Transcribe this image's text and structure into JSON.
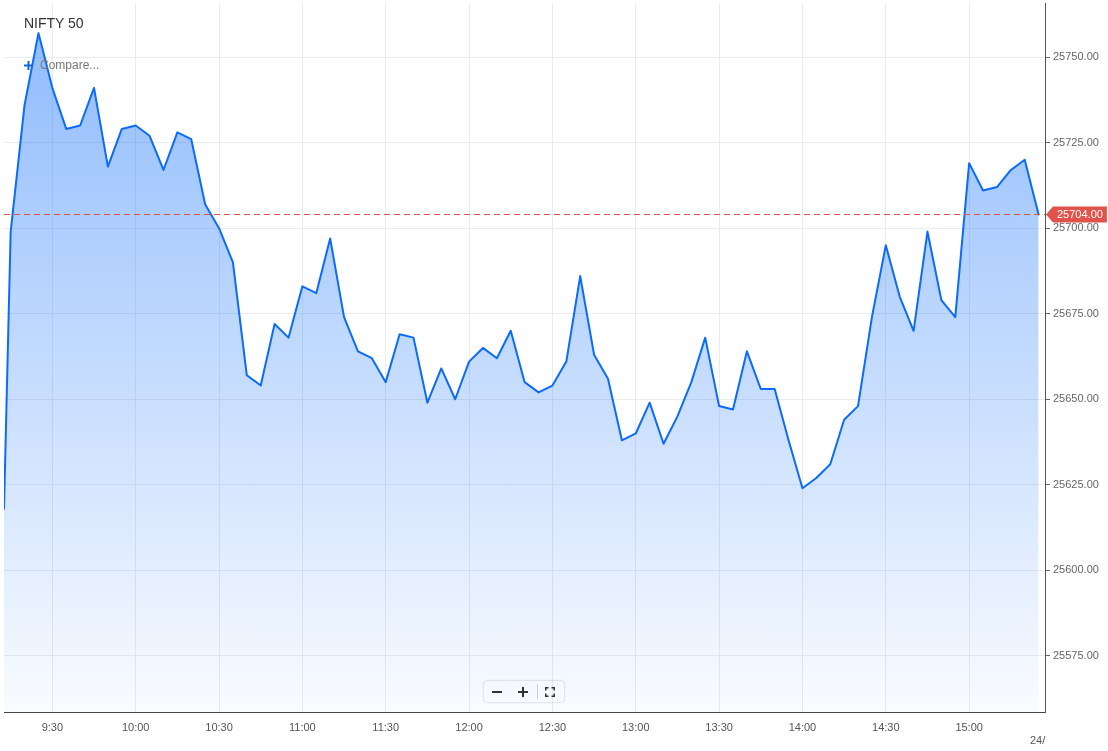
{
  "chart_data": {
    "type": "area",
    "title": "NIFTY 50",
    "annotations": [
      "Compare...",
      "24/"
    ],
    "series": [
      {
        "color": "#0b6bfa",
        "x": [
          9.21,
          9.25,
          9.3333,
          9.4167,
          9.5,
          9.5833,
          9.6667,
          9.75,
          9.8333,
          9.9167,
          10,
          10.0833,
          10.1667,
          10.25,
          10.3333,
          10.4167,
          10.5,
          10.5833,
          10.6667,
          10.75,
          10.8333,
          10.9167,
          11,
          11.0833,
          11.1667,
          11.25,
          11.3333,
          11.4167,
          11.5,
          11.5833,
          11.6667,
          11.75,
          11.8333,
          11.9167,
          12,
          12.0833,
          12.1667,
          12.25,
          12.3333,
          12.4167,
          12.5,
          12.5833,
          12.6667,
          12.75,
          12.8333,
          12.9167,
          13,
          13.0833,
          13.1667,
          13.25,
          13.3333,
          13.4167,
          13.5,
          13.5833,
          13.6667,
          13.75,
          13.8333,
          13.9167,
          14,
          14.0833,
          14.1667,
          14.25,
          14.3333,
          14.4167,
          14.5,
          14.5833,
          14.6667,
          14.75,
          14.8333,
          14.9167,
          15,
          15.0833,
          15.1667,
          15.25,
          15.3333,
          15.4167
        ],
        "values": [
          25618,
          25699,
          25736,
          25757,
          25741,
          25729,
          25730,
          25741,
          25718,
          25729,
          25730,
          25727,
          25717,
          25728,
          25726,
          25707,
          25700,
          25690,
          25657,
          25654,
          25672,
          25668,
          25683,
          25681,
          25697,
          25674,
          25664,
          25662,
          25655,
          25669,
          25668,
          25649,
          25659,
          25650,
          25661,
          25665,
          25662,
          25670,
          25655,
          25652,
          25654,
          25661,
          25686,
          25663,
          25656,
          25638,
          25640,
          25649,
          25637,
          25645,
          25655,
          25668,
          25648,
          25647,
          25664,
          25653,
          25653,
          25638,
          25624,
          25627,
          25631,
          25644,
          25648,
          25674,
          25695,
          25680,
          25670,
          25699,
          25679,
          25674,
          25719,
          25711,
          25712,
          25717,
          25720,
          25704
        ]
      }
    ],
    "xlim": [
      9.21,
      15.455
    ],
    "xticks": [
      {
        "value": 9.5,
        "label": "9:30"
      },
      {
        "value": 10,
        "label": "10:00"
      },
      {
        "value": 10.5,
        "label": "10:30"
      },
      {
        "value": 11,
        "label": "11:00"
      },
      {
        "value": 11.5,
        "label": "11:30"
      },
      {
        "value": 12,
        "label": "12:00"
      },
      {
        "value": 12.5,
        "label": "12:30"
      },
      {
        "value": 13,
        "label": "13:00"
      },
      {
        "value": 13.5,
        "label": "13:30"
      },
      {
        "value": 14,
        "label": "14:00"
      },
      {
        "value": 14.5,
        "label": "14:30"
      },
      {
        "value": 15,
        "label": "15:00"
      }
    ],
    "ylim": [
      25558.6,
      25765.8
    ],
    "yticks": [
      {
        "value": 25575,
        "label": "25575.00"
      },
      {
        "value": 25600,
        "label": "25600.00"
      },
      {
        "value": 25625,
        "label": "25625.00"
      },
      {
        "value": 25650,
        "label": "25650.00"
      },
      {
        "value": 25675,
        "label": "25675.00"
      },
      {
        "value": 25700,
        "label": "25700.00"
      },
      {
        "value": 25725,
        "label": "25725.00"
      },
      {
        "value": 25750,
        "label": "25750.00"
      }
    ],
    "ref_lines": [
      {
        "axis": "y",
        "value": 25704,
        "label": "25704.00",
        "color": "#e0534a",
        "line_style": "dashed"
      }
    ],
    "grid": true,
    "legend": false,
    "marker": "none"
  }
}
